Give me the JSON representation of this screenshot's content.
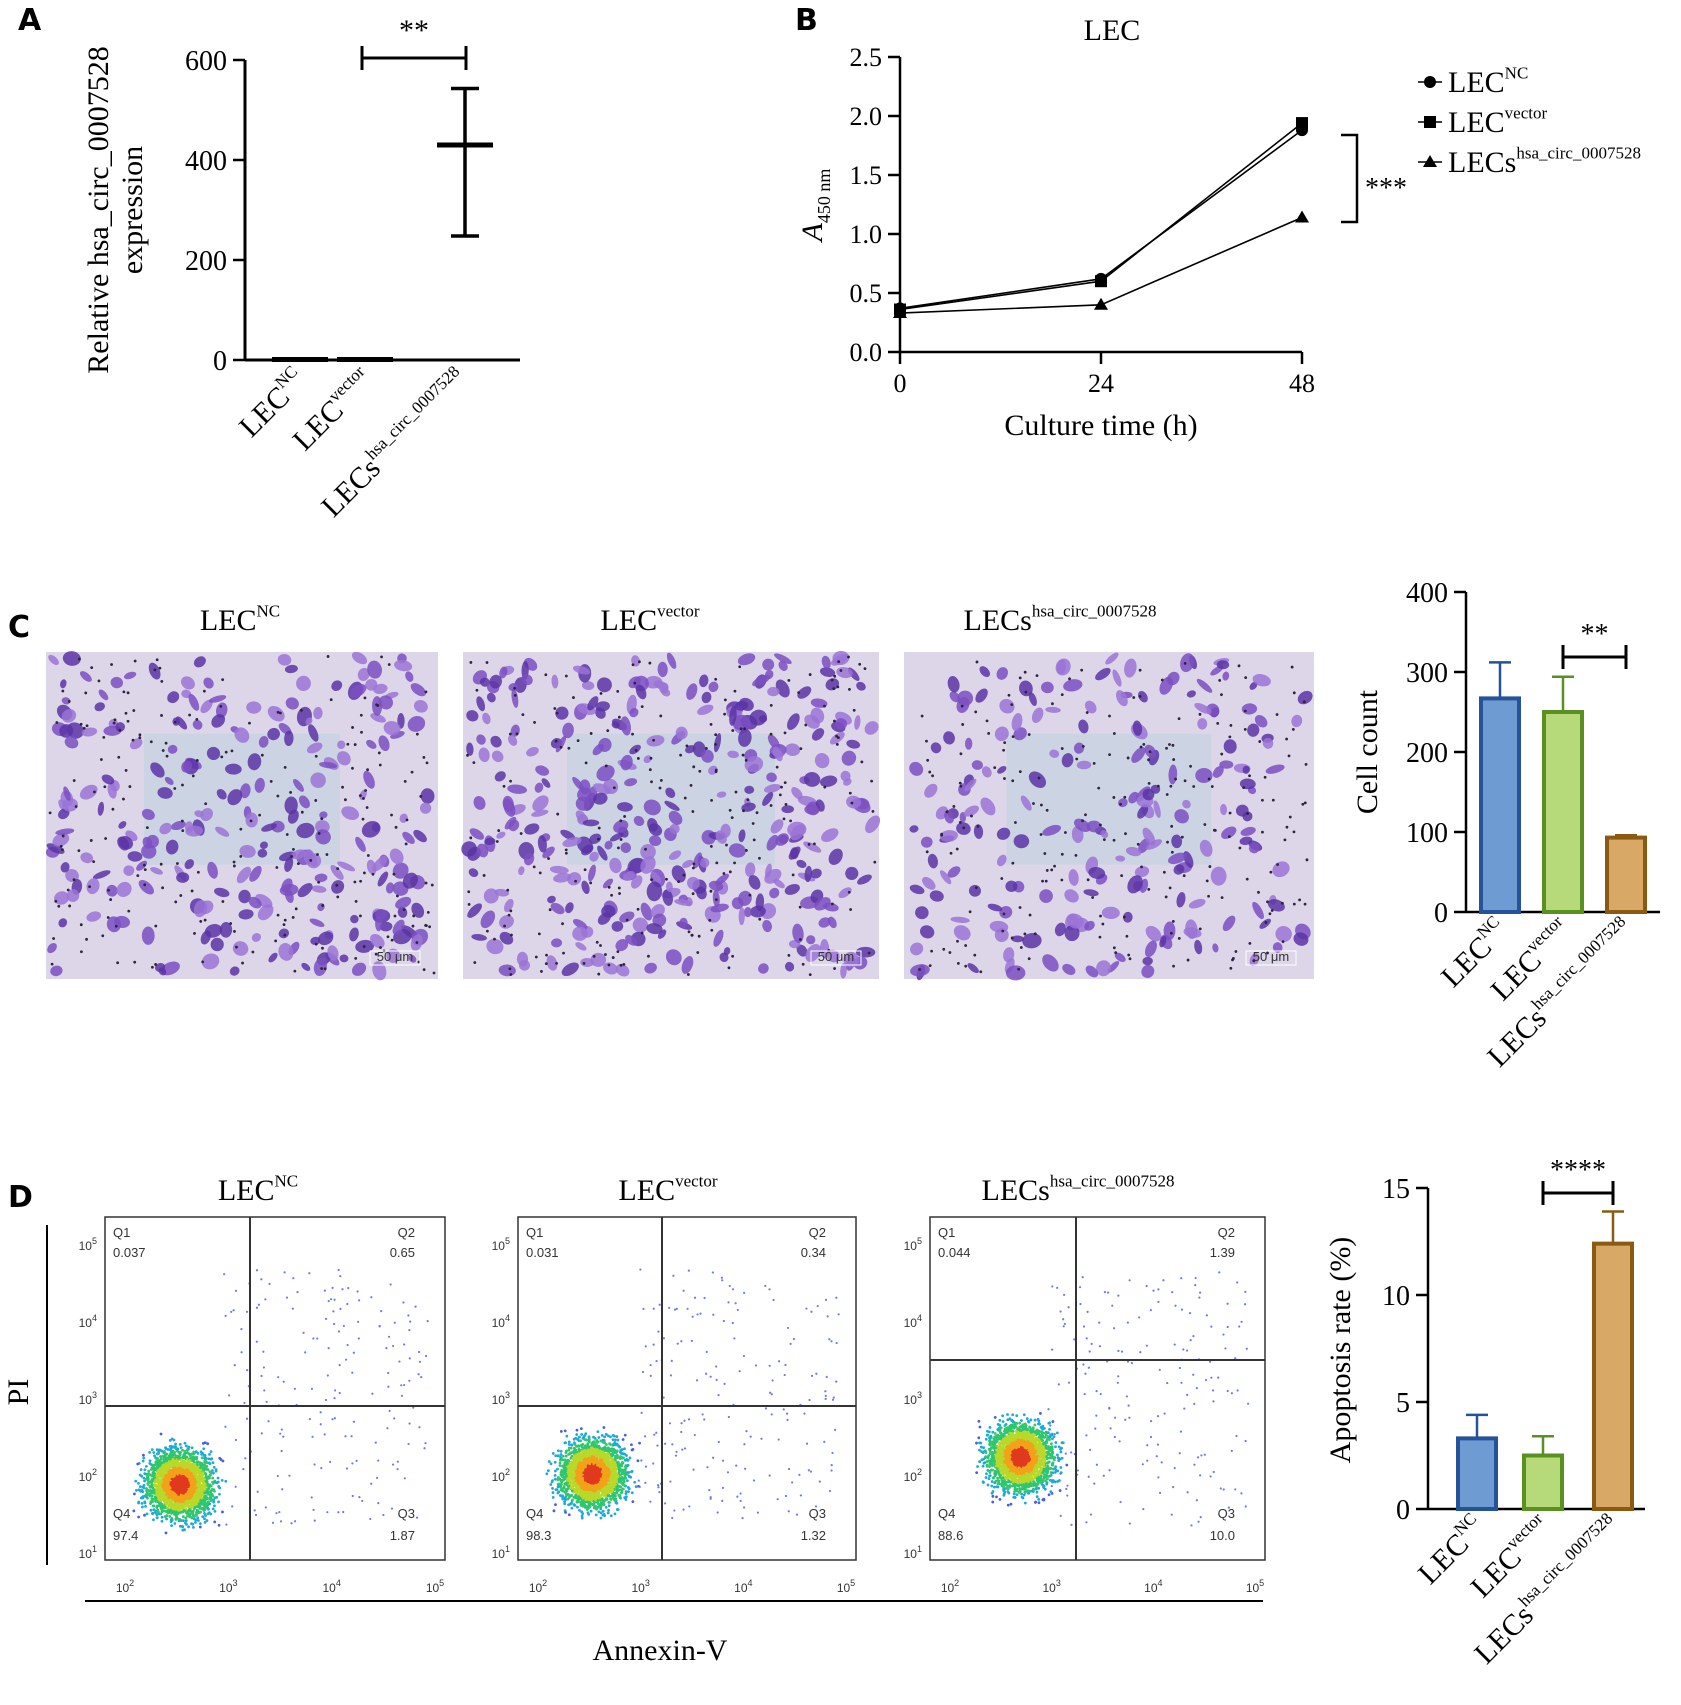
{
  "panel_letters": [
    "A",
    "B",
    "C",
    "D"
  ],
  "groups": {
    "base": [
      "LEC",
      "LEC",
      "LECs"
    ],
    "sup": [
      "NC",
      "vector",
      "hsa_circ_0007528"
    ]
  },
  "chart_data": [
    {
      "id": "A",
      "type": "scatter",
      "ylabel_lines": [
        "Relative hsa_circ_0007528",
        "expression"
      ],
      "ylim": [
        0,
        600
      ],
      "yticks": [
        0,
        200,
        400,
        600
      ],
      "categories": [
        "LEC^NC",
        "LEC^vector",
        "LECs^hsa_circ_0007528"
      ],
      "mean": [
        1,
        1,
        430
      ],
      "error_low": [
        1,
        1,
        248
      ],
      "error_high": [
        1,
        1,
        543
      ],
      "significance": {
        "between": [
          1,
          2
        ],
        "label": "**"
      }
    },
    {
      "id": "B",
      "type": "line",
      "title": "LEC",
      "xlabel": "Culture time (h)",
      "ylabel": "A",
      "ylabel_sub": "450 nm",
      "x": [
        0,
        24,
        48
      ],
      "xlim": [
        0,
        48
      ],
      "ylim": [
        0,
        2.5
      ],
      "yticks": [
        "0.0",
        "0.5",
        "1.0",
        "1.5",
        "2.0",
        "2.5"
      ],
      "series": [
        {
          "name": "LEC^NC",
          "marker": "circle",
          "values": [
            0.37,
            0.62,
            1.88
          ]
        },
        {
          "name": "LEC^vector",
          "marker": "square",
          "values": [
            0.36,
            0.6,
            1.94
          ]
        },
        {
          "name": "LECs^hsa_circ_0007528",
          "marker": "triangle",
          "values": [
            0.33,
            0.4,
            1.14
          ]
        }
      ],
      "legend_position": "top-right",
      "significance": {
        "label": "***"
      }
    },
    {
      "id": "C",
      "type": "bar",
      "ylabel": "Cell count",
      "ylim": [
        0,
        400
      ],
      "yticks": [
        0,
        100,
        200,
        300,
        400
      ],
      "categories": [
        "LEC^NC",
        "LEC^vector",
        "LECs^hsa_circ_0007528"
      ],
      "values": [
        267,
        250,
        93
      ],
      "errors": [
        45,
        44,
        3
      ],
      "colors": [
        "#6f9bd3",
        "#b6d97a",
        "#d7a866"
      ],
      "edge_colors": [
        "#26529a",
        "#5a8f21",
        "#8a5a12"
      ],
      "significance": {
        "between": [
          1,
          2
        ],
        "label": "**"
      }
    },
    {
      "id": "D",
      "type": "bar",
      "ylabel": "Apoptosis rate (%)",
      "ylim": [
        0,
        15
      ],
      "yticks": [
        0,
        5,
        10,
        15
      ],
      "categories": [
        "LEC^NC",
        "LEC^vector",
        "LECs^hsa_circ_0007528"
      ],
      "values": [
        3.3,
        2.5,
        12.4
      ],
      "errors": [
        1.1,
        0.9,
        1.5
      ],
      "colors": [
        "#6f9bd3",
        "#b6d97a",
        "#d7a866"
      ],
      "edge_colors": [
        "#26529a",
        "#5a8f21",
        "#8a5a12"
      ],
      "significance": {
        "between": [
          1,
          2
        ],
        "label": "****"
      }
    }
  ],
  "flow_cytometry": {
    "xlabel": "Annexin-V",
    "ylabel": "PI",
    "tick_exponents": [
      "2",
      "3",
      "4",
      "5"
    ],
    "y_tick_exponents": [
      "1",
      "2",
      "3",
      "4",
      "5"
    ],
    "tick_base": "10",
    "quadrant_names": [
      "Q1",
      "Q2",
      "Q3",
      "Q4"
    ],
    "plots": [
      {
        "group": "LEC^NC",
        "q1": "0.037",
        "q2": "0.65",
        "q3": "1.87",
        "q4": "97.4"
      },
      {
        "group": "LEC^vector",
        "q1": "0.031",
        "q2": "0.34",
        "q3": "1.32",
        "q4": "98.3"
      },
      {
        "group": "LECs^hsa_circ_0007528",
        "q1": "0.044",
        "q2": "1.39",
        "q3": "10.0",
        "q4": "88.6"
      }
    ]
  },
  "micrograph": {
    "stain_colors": [
      "#7b4fc2",
      "#5a34a6",
      "#9a74d6"
    ],
    "background": "#dcd6e8",
    "scale_bar_label": "50 μm"
  }
}
